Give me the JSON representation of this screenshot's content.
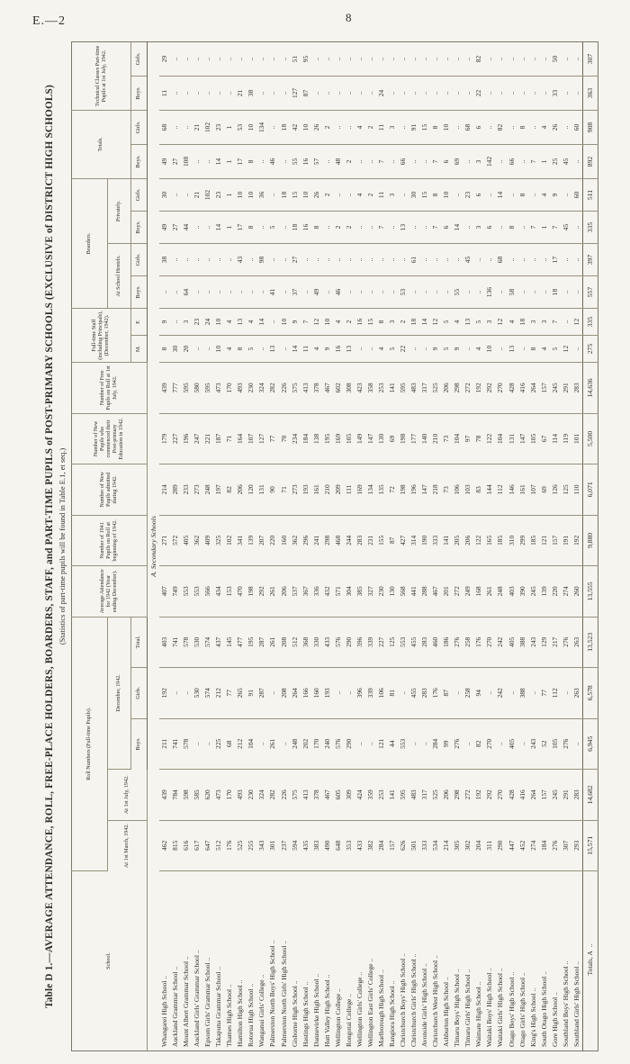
{
  "page": {
    "folio": "E.—2",
    "page_number": "8"
  },
  "table": {
    "title": "Table D 1.—AVERAGE ATTENDANCE, ROLL, FREE-PLACE HOLDERS, BOARDERS, STAFF, and PART-TIME PUPILS of POST-PRIMARY SCHOOLS (EXCLUSIVE of DISTRICT HIGH SCHOOLS)",
    "subtitle": "(Statistics of part-time pupils will be found in Table E.1, et seq.)",
    "section_header": "A. Secondary Schools",
    "nil_marker": "..",
    "leader": "..",
    "headers": {
      "school": "School.",
      "roll_group": "Roll Numbers (Full-time Pupils).",
      "march": "At 1st March, 1942.",
      "july": "At 1st July, 1942.",
      "december_group": "December, 1942.",
      "boys": "Boys.",
      "girls": "Girls.",
      "total": "Total.",
      "average": "Average Attend­ance for 1942 (Year ending December).",
      "roll_1941": "Number of 1941 Pupils on Roll at beginning of 1942.",
      "admitted": "Number of New Pupils admitted during 1942.",
      "commenced": "Number of New Pupils who commenced their Post-primary Education in 1942.",
      "free_pupils": "Number of Free Pupils on Roll at 1st July, 1942.",
      "staff_group": "Full-time Staff (including Principals), (December, 1942).",
      "staff_m": "M.",
      "staff_f": "F.",
      "boarders_group": "Boarders.",
      "hostels_group": "At School Hostels.",
      "privately_group": "Privately.",
      "totals_group": "Totals.",
      "technical_group": "Technical Classes Part-time Pupils at 1st July, 1942."
    },
    "column_order": [
      "At 1st March 1942",
      "At 1st July 1942",
      "December Boys",
      "December Girls",
      "December Total",
      "Average Attendance 1942",
      "1941 Pupils on Roll",
      "New Pupils admitted 1942",
      "New Pupils commenced post-primary 1942",
      "Free Pupils 1st July 1942",
      "Staff M",
      "Staff F",
      "Hostel Boys",
      "Hostel Girls",
      "Privately Boys",
      "Privately Girls",
      "Totals Boys",
      "Totals Girls",
      "Technical Boys",
      "Technical Girls"
    ],
    "rows": [
      {
        "school": "Whangarei High School",
        "values": [
          "462",
          "439",
          "211",
          "192",
          "403",
          "407",
          "271",
          "214",
          "179",
          "439",
          "8",
          "9",
          "..",
          "38",
          "49",
          "30",
          "49",
          "68",
          "11",
          "29"
        ]
      },
      {
        "school": "Auckland Grammar School",
        "values": [
          "815",
          "784",
          "741",
          "..",
          "741",
          "749",
          "572",
          "289",
          "227",
          "777",
          "30",
          "..",
          "..",
          "..",
          "27",
          "..",
          "27",
          "..",
          "..",
          ".."
        ]
      },
      {
        "school": "Mount Albert Grammar School",
        "values": [
          "616",
          "598",
          "578",
          "..",
          "578",
          "553",
          "405",
          "233",
          "196",
          "595",
          "20",
          "3",
          "64",
          "..",
          "44",
          "..",
          "108",
          "..",
          "..",
          ".."
        ]
      },
      {
        "school": "Auckland Girls' Grammar School",
        "values": [
          "617",
          "585",
          "..",
          "530",
          "530",
          "553",
          "362",
          "273",
          "247",
          "580",
          "..",
          "23",
          "..",
          "..",
          "..",
          "21",
          "..",
          "21",
          "..",
          ".."
        ]
      },
      {
        "school": "Epsom Girls' Grammar School",
        "values": [
          "647",
          "620",
          "..",
          "574",
          "574",
          "566",
          "409",
          "248",
          "221",
          "595",
          "..",
          "24",
          "..",
          "..",
          "..",
          "102",
          "..",
          "102",
          "..",
          ".."
        ]
      },
      {
        "school": "Takapuna Grammar School",
        "values": [
          "512",
          "473",
          "225",
          "212",
          "437",
          "434",
          "325",
          "197",
          "187",
          "473",
          "10",
          "10",
          "..",
          "..",
          "14",
          "23",
          "14",
          "23",
          "..",
          ".."
        ]
      },
      {
        "school": "Thames High School",
        "values": [
          "176",
          "170",
          "68",
          "77",
          "145",
          "153",
          "102",
          "82",
          "71",
          "170",
          "4",
          "4",
          "..",
          "..",
          "1",
          "1",
          "1",
          "1",
          "..",
          ".."
        ]
      },
      {
        "school": "Hamilton High School",
        "values": [
          "525",
          "493",
          "212",
          "265",
          "477",
          "470",
          "341",
          "206",
          "164",
          "493",
          "8",
          "13",
          "..",
          "43",
          "17",
          "10",
          "17",
          "53",
          "21",
          ".."
        ]
      },
      {
        "school": "Rotorua High School",
        "values": [
          "255",
          "230",
          "104",
          "91",
          "195",
          "198",
          "139",
          "120",
          "107",
          "230",
          "5",
          "4",
          "..",
          "..",
          "8",
          "10",
          "8",
          "10",
          "38",
          ".."
        ]
      },
      {
        "school": "Wanganui Girls' College",
        "values": [
          "343",
          "324",
          "..",
          "287",
          "287",
          "292",
          "207",
          "131",
          "127",
          "324",
          "..",
          "14",
          "..",
          "98",
          "..",
          "36",
          "..",
          "134",
          "..",
          ".."
        ]
      },
      {
        "school": "Palmerston North Boys' High School",
        "values": [
          "301",
          "282",
          "261",
          "..",
          "261",
          "261",
          "220",
          "90",
          "77",
          "282",
          "13",
          "..",
          "41",
          "..",
          "5",
          "..",
          "46",
          "..",
          "..",
          ".."
        ]
      },
      {
        "school": "Palmerston North Girls' High School",
        "values": [
          "237",
          "226",
          "..",
          "208",
          "208",
          "206",
          "160",
          "71",
          "70",
          "226",
          "..",
          "10",
          "..",
          "..",
          "..",
          "18",
          "..",
          "18",
          "..",
          ".."
        ]
      },
      {
        "school": "Gisborne High School",
        "values": [
          "594",
          "575",
          "248",
          "264",
          "512",
          "537",
          "362",
          "273",
          "234",
          "575",
          "14",
          "9",
          "37",
          "27",
          "18",
          "15",
          "55",
          "42",
          "127",
          "51"
        ]
      },
      {
        "school": "Hastings High School",
        "values": [
          "435",
          "413",
          "202",
          "166",
          "368",
          "367",
          "296",
          "193",
          "184",
          "413",
          "11",
          "7",
          "..",
          "..",
          "16",
          "10",
          "16",
          "10",
          "87",
          "95"
        ]
      },
      {
        "school": "Dannevirke High School",
        "values": [
          "383",
          "378",
          "170",
          "160",
          "330",
          "336",
          "241",
          "161",
          "138",
          "378",
          "4",
          "12",
          "49",
          "..",
          "8",
          "26",
          "57",
          "26",
          "..",
          ".."
        ]
      },
      {
        "school": "Hutt Valley High School",
        "values": [
          "490",
          "467",
          "240",
          "193",
          "433",
          "432",
          "298",
          "210",
          "195",
          "467",
          "9",
          "10",
          "..",
          "..",
          "..",
          "2",
          "..",
          "2",
          "..",
          ".."
        ]
      },
      {
        "school": "Wellington College",
        "values": [
          "648",
          "605",
          "576",
          "..",
          "576",
          "571",
          "468",
          "209",
          "169",
          "602",
          "16",
          "4",
          "46",
          "..",
          "2",
          "..",
          "48",
          "..",
          "..",
          ".."
        ]
      },
      {
        "school": "Rongotai College",
        "values": [
          "353",
          "309",
          "290",
          "..",
          "290",
          "304",
          "244",
          "111",
          "105",
          "308",
          "13",
          "2",
          "..",
          "..",
          "2",
          "..",
          "2",
          "..",
          "..",
          ".."
        ]
      },
      {
        "school": "Wellington Girls' College",
        "values": [
          "433",
          "424",
          "..",
          "396",
          "396",
          "385",
          "283",
          "169",
          "149",
          "423",
          "..",
          "16",
          "..",
          "..",
          "..",
          "4",
          "..",
          "4",
          "..",
          ".."
        ]
      },
      {
        "school": "Wellington East Girls' College",
        "values": [
          "382",
          "359",
          "..",
          "339",
          "339",
          "327",
          "231",
          "134",
          "147",
          "358",
          "..",
          "15",
          "..",
          "..",
          "..",
          "2",
          "..",
          "2",
          "..",
          ".."
        ]
      },
      {
        "school": "Marlborough High School",
        "values": [
          "284",
          "253",
          "121",
          "106",
          "227",
          "230",
          "155",
          "135",
          "130",
          "253",
          "4",
          "8",
          "..",
          "..",
          "7",
          "11",
          "7",
          "11",
          "24",
          ".."
        ]
      },
      {
        "school": "Rangiora High School",
        "values": [
          "157",
          "141",
          "44",
          "81",
          "125",
          "130",
          "87",
          "72",
          "69",
          "141",
          "5",
          "3",
          "..",
          "..",
          "..",
          "3",
          "..",
          "3",
          "..",
          ".."
        ]
      },
      {
        "school": "Christchurch Boys' High School",
        "values": [
          "626",
          "595",
          "553",
          "..",
          "553",
          "568",
          "427",
          "198",
          "198",
          "595",
          "22",
          "2",
          "53",
          "..",
          "13",
          "..",
          "66",
          "..",
          "..",
          ".."
        ]
      },
      {
        "school": "Christchurch Girls' High School",
        "values": [
          "501",
          "483",
          "..",
          "455",
          "455",
          "441",
          "314",
          "196",
          "177",
          "483",
          "..",
          "18",
          "..",
          "61",
          "..",
          "30",
          "..",
          "91",
          "..",
          ".."
        ]
      },
      {
        "school": "Avonside Girls' High School",
        "values": [
          "333",
          "317",
          "..",
          "283",
          "283",
          "288",
          "190",
          "147",
          "140",
          "317",
          "..",
          "14",
          "..",
          "..",
          "..",
          "15",
          "..",
          "15",
          "..",
          ".."
        ]
      },
      {
        "school": "Christchurch West High School",
        "values": [
          "534",
          "525",
          "284",
          "176",
          "460",
          "467",
          "333",
          "218",
          "210",
          "525",
          "9",
          "12",
          "..",
          "..",
          "7",
          "8",
          "7",
          "8",
          "..",
          ".."
        ]
      },
      {
        "school": "Ashburton High School",
        "values": [
          "214",
          "206",
          "99",
          "87",
          "186",
          "201",
          "141",
          "73",
          "73",
          "206",
          "5",
          "5",
          "..",
          "..",
          "6",
          "10",
          "6",
          "10",
          "..",
          ".."
        ]
      },
      {
        "school": "Timaru Boys' High School",
        "values": [
          "305",
          "298",
          "276",
          "..",
          "276",
          "272",
          "205",
          "106",
          "104",
          "298",
          "9",
          "4",
          "55",
          "..",
          "14",
          "..",
          "69",
          "..",
          "..",
          ".."
        ]
      },
      {
        "school": "Timaru Girls' High School",
        "values": [
          "302",
          "272",
          "..",
          "258",
          "258",
          "249",
          "206",
          "103",
          "97",
          "272",
          "..",
          "13",
          "..",
          "45",
          "..",
          "23",
          "..",
          "68",
          "..",
          ".."
        ]
      },
      {
        "school": "Waimate High School",
        "values": [
          "204",
          "192",
          "82",
          "94",
          "176",
          "168",
          "122",
          "83",
          "78",
          "192",
          "4",
          "5",
          "..",
          "..",
          "3",
          "6",
          "3",
          "6",
          "22",
          "82"
        ]
      },
      {
        "school": "Waitaki Boys' High School",
        "values": [
          "311",
          "292",
          "270",
          "..",
          "270",
          "261",
          "165",
          "144",
          "122",
          "292",
          "10",
          "3",
          "136",
          "..",
          "6",
          "..",
          "142",
          "..",
          "..",
          ".."
        ]
      },
      {
        "school": "Waitaki Girls' High School",
        "values": [
          "290",
          "270",
          "..",
          "242",
          "242",
          "248",
          "185",
          "112",
          "104",
          "270",
          "..",
          "12",
          "..",
          "68",
          "..",
          "14",
          "..",
          "82",
          "..",
          ".."
        ]
      },
      {
        "school": "Otago Boys' High School",
        "values": [
          "447",
          "428",
          "405",
          "..",
          "405",
          "403",
          "310",
          "146",
          "131",
          "428",
          "13",
          "4",
          "58",
          "..",
          "8",
          "..",
          "66",
          "..",
          "..",
          ".."
        ]
      },
      {
        "school": "Otago Girls' High School",
        "values": [
          "452",
          "416",
          "..",
          "388",
          "388",
          "390",
          "299",
          "161",
          "147",
          "416",
          "..",
          "18",
          "..",
          "..",
          "..",
          "8",
          "..",
          "8",
          "..",
          ".."
        ]
      },
      {
        "school": "King's High School",
        "values": [
          "274",
          "264",
          "243",
          "..",
          "243",
          "245",
          "185",
          "107",
          "105",
          "264",
          "8",
          "3",
          "..",
          "..",
          "7",
          "..",
          "7",
          "..",
          "..",
          ".."
        ]
      },
      {
        "school": "South Otago High School",
        "values": [
          "184",
          "157",
          "52",
          "77",
          "129",
          "139",
          "121",
          "69",
          "67",
          "157",
          "4",
          "3",
          "..",
          "..",
          "1",
          "4",
          "1",
          "4",
          "..",
          ".."
        ]
      },
      {
        "school": "Gore High School",
        "values": [
          "276",
          "245",
          "105",
          "112",
          "217",
          "220",
          "157",
          "126",
          "114",
          "245",
          "5",
          "7",
          "18",
          "17",
          "7",
          "9",
          "25",
          "26",
          "33",
          "50"
        ]
      },
      {
        "school": "Southland Boys' High School",
        "values": [
          "307",
          "291",
          "276",
          "..",
          "276",
          "274",
          "191",
          "125",
          "119",
          "291",
          "12",
          "..",
          "..",
          "..",
          "45",
          "..",
          "45",
          "..",
          "..",
          ".."
        ]
      },
      {
        "school": "Southland Girls' High School",
        "values": [
          "293",
          "283",
          "..",
          "263",
          "263",
          "260",
          "192",
          "110",
          "101",
          "283",
          "..",
          "12",
          "..",
          "..",
          "..",
          "60",
          "..",
          "60",
          "..",
          ".."
        ]
      }
    ],
    "totals": {
      "label": "Totals, A",
      "values": [
        "15,571",
        "14,682",
        "6,945",
        "6,578",
        "13,523",
        "13,555",
        "9,880",
        "6,071",
        "5,500",
        "14,636",
        "275",
        "335",
        "557",
        "397",
        "335",
        "511",
        "892",
        "908",
        "363",
        "307"
      ]
    }
  }
}
